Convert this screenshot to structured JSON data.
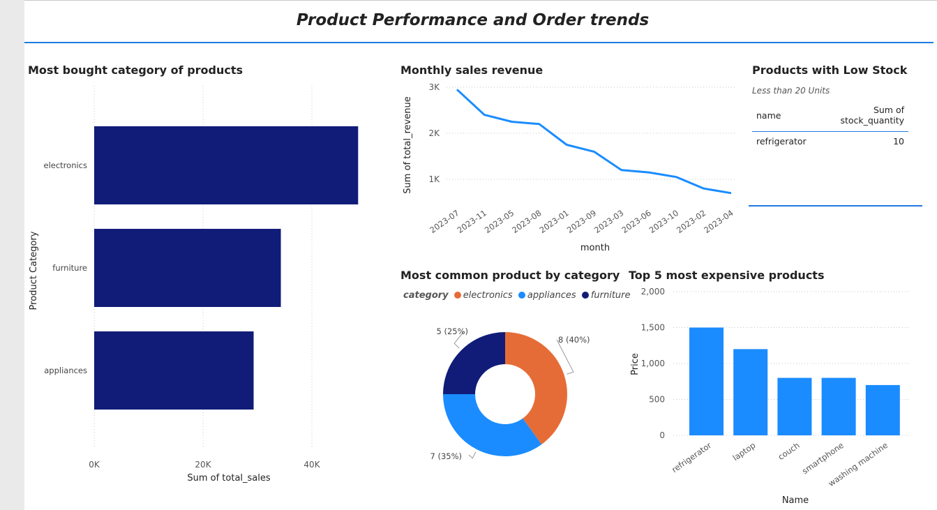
{
  "page": {
    "title": "Product Performance and Order trends"
  },
  "colors": {
    "navy": "#111c78",
    "blue": "#1a8cff",
    "orange": "#e66c37",
    "accent": "#1f7adf"
  },
  "visuals": {
    "bar_title": "Most bought category of products",
    "line_title": "Monthly sales revenue",
    "stock_title": "Products with Low Stock",
    "stock_subtitle": "Less than 20 Units",
    "donut_title": "Most common product by category",
    "exp_title": "Top 5 most expensive products"
  },
  "low_stock": {
    "columns": [
      "name",
      "Sum of stock_quantity"
    ],
    "rows": [
      [
        "refrigerator",
        "10"
      ]
    ]
  },
  "donut_legend": {
    "label": "category",
    "items": [
      {
        "name": "electronics",
        "color": "#e66c37"
      },
      {
        "name": "appliances",
        "color": "#1a8cff"
      },
      {
        "name": "furniture",
        "color": "#111c78"
      }
    ]
  },
  "chart_data": [
    {
      "type": "bar",
      "orientation": "horizontal",
      "title": "Most bought category of products",
      "categories": [
        "electronics",
        "furniture",
        "appliances"
      ],
      "values": [
        48500,
        34300,
        29300
      ],
      "xlabel": "Sum of total_sales",
      "ylabel": "Product Category",
      "xticks": [
        "0K",
        "20K",
        "40K"
      ],
      "xlim": [
        0,
        50000
      ],
      "grid": true,
      "color": "#111c78"
    },
    {
      "type": "line",
      "title": "Monthly sales revenue",
      "x": [
        "2023-07",
        "2023-11",
        "2023-05",
        "2023-08",
        "2023-01",
        "2023-09",
        "2023-03",
        "2023-06",
        "2023-10",
        "2023-02",
        "2023-04"
      ],
      "values": [
        2950,
        2400,
        2250,
        2200,
        1750,
        1600,
        1200,
        1150,
        1050,
        800,
        700
      ],
      "xlabel": "month",
      "ylabel": "Sum of total_revenue",
      "yticks": [
        "1K",
        "2K",
        "3K"
      ],
      "ylim": [
        520,
        3080
      ],
      "grid": true,
      "color": "#1a8cff"
    },
    {
      "type": "pie",
      "donut": true,
      "title": "Most common product by category",
      "categories": [
        "electronics",
        "appliances",
        "furniture"
      ],
      "values": [
        8,
        7,
        5
      ],
      "labels": [
        "8 (40%)",
        "7 (35%)",
        "5 (25%)"
      ],
      "colors": [
        "#e66c37",
        "#1a8cff",
        "#111c78"
      ]
    },
    {
      "type": "bar",
      "title": "Top 5 most expensive products",
      "categories": [
        "refrigerator",
        "laptop",
        "couch",
        "smartphone",
        "washing machine"
      ],
      "values": [
        1500,
        1200,
        800,
        800,
        700
      ],
      "xlabel": "Name",
      "ylabel": "Price",
      "yticks": [
        "0",
        "500",
        "1,000",
        "1,500",
        "2,000"
      ],
      "ylim": [
        0,
        2000
      ],
      "grid": true,
      "color": "#1a8cff"
    }
  ]
}
